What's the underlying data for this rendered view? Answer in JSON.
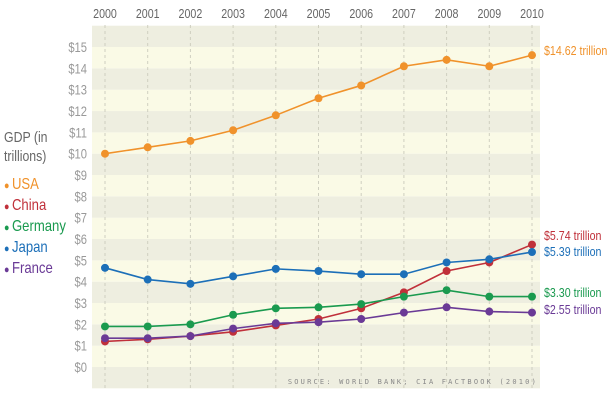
{
  "chart_data": {
    "type": "line",
    "ylabel": "GDP (in trillions)",
    "x": [
      2000,
      2001,
      2002,
      2003,
      2004,
      2005,
      2006,
      2007,
      2008,
      2009,
      2010
    ],
    "yticks": [
      "$0",
      "$1",
      "$2",
      "$3",
      "$4",
      "$5",
      "$6",
      "$7",
      "$8",
      "$9",
      "$10",
      "$11",
      "$12",
      "$13",
      "$14",
      "$15"
    ],
    "ylim": [
      0,
      15
    ],
    "grid": true,
    "legend_position": "left",
    "source": "SOURCE: WORLD BANK; CIA FACTBOOK (2010)",
    "series": [
      {
        "name": "USA",
        "color": "#f0922b",
        "values": [
          10.0,
          10.3,
          10.6,
          11.1,
          11.8,
          12.6,
          13.2,
          14.1,
          14.4,
          14.1,
          14.62
        ],
        "end_label": "$14.62 trillion"
      },
      {
        "name": "China",
        "color": "#c0303a",
        "values": [
          1.2,
          1.3,
          1.45,
          1.65,
          1.95,
          2.25,
          2.75,
          3.5,
          4.5,
          4.9,
          5.74
        ],
        "end_label": "$5.74 trillion"
      },
      {
        "name": "Germany",
        "color": "#1a9a4f",
        "values": [
          1.9,
          1.9,
          2.0,
          2.45,
          2.75,
          2.8,
          2.95,
          3.3,
          3.6,
          3.3,
          3.3
        ],
        "end_label": "$3.30 trillion"
      },
      {
        "name": "Japan",
        "color": "#1c6fb8",
        "values": [
          4.65,
          4.1,
          3.9,
          4.25,
          4.6,
          4.5,
          4.35,
          4.35,
          4.9,
          5.05,
          5.39
        ],
        "end_label": "$5.39 trillion"
      },
      {
        "name": "France",
        "color": "#6a3a96",
        "values": [
          1.35,
          1.35,
          1.45,
          1.8,
          2.05,
          2.1,
          2.25,
          2.55,
          2.8,
          2.6,
          2.55
        ],
        "end_label": "$2.55 trillion"
      }
    ]
  }
}
